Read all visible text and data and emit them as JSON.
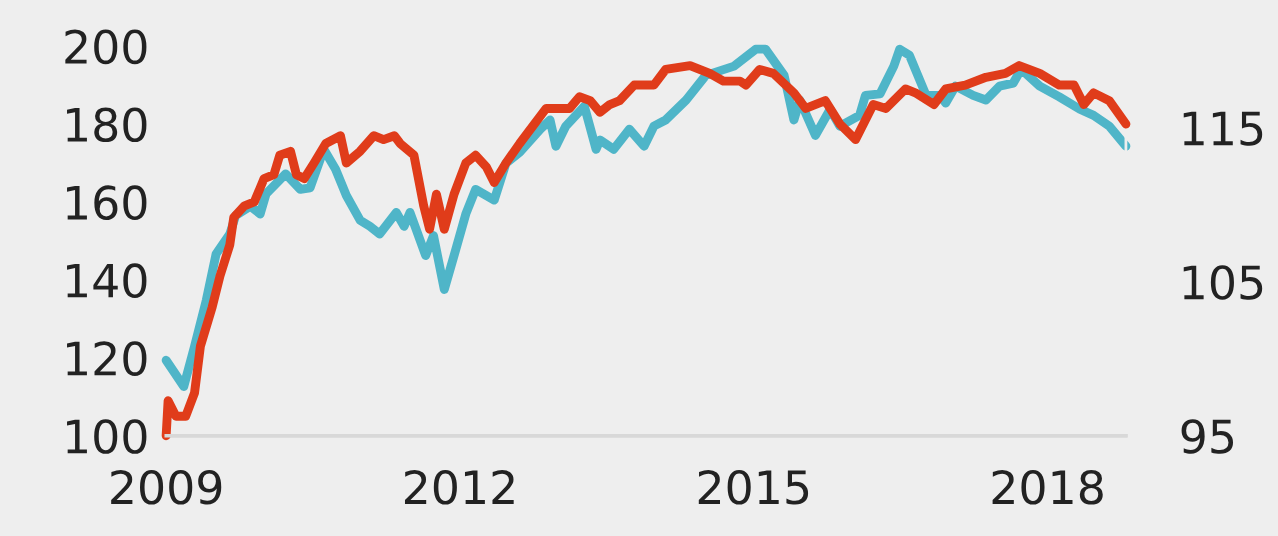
{
  "chart_data": {
    "type": "line",
    "xlim": [
      2009,
      2018.8
    ],
    "xticks": [
      2009,
      2012,
      2015,
      2018
    ],
    "ylim": [
      100,
      200
    ],
    "yticks": [
      100,
      120,
      140,
      160,
      180,
      200
    ],
    "y2lim": [
      95,
      120.3
    ],
    "y2ticks": [
      95,
      105,
      115
    ],
    "grid": false,
    "series": [
      {
        "color": "#e03c1a",
        "axis": "y",
        "x": [
          2009.0,
          2009.02,
          2009.1,
          2009.2,
          2009.29,
          2009.35,
          2009.47,
          2009.55,
          2009.65,
          2009.69,
          2009.8,
          2009.9,
          2010.0,
          2010.1,
          2010.16,
          2010.27,
          2010.33,
          2010.41,
          2010.51,
          2010.63,
          2010.78,
          2010.84,
          2010.98,
          2011.12,
          2011.22,
          2011.33,
          2011.39,
          2011.53,
          2011.63,
          2011.69,
          2011.76,
          2011.84,
          2011.94,
          2012.06,
          2012.16,
          2012.27,
          2012.35,
          2012.47,
          2012.61,
          2012.76,
          2012.88,
          2012.98,
          2013.12,
          2013.22,
          2013.33,
          2013.43,
          2013.53,
          2013.63,
          2013.78,
          2013.98,
          2014.1,
          2014.35,
          2014.55,
          2014.69,
          2014.86,
          2014.92,
          2015.06,
          2015.2,
          2015.41,
          2015.53,
          2015.73,
          2015.88,
          2016.04,
          2016.22,
          2016.35,
          2016.55,
          2016.65,
          2016.84,
          2016.96,
          2017.16,
          2017.37,
          2017.57,
          2017.71,
          2017.92,
          2018.12,
          2018.27,
          2018.37,
          2018.47,
          2018.63,
          2018.8
        ],
        "values": [
          100,
          109,
          105,
          105,
          111,
          123,
          133,
          141,
          149,
          156,
          159,
          160,
          166,
          167,
          172,
          173,
          167,
          166,
          170,
          175,
          177,
          170,
          173,
          177,
          176,
          177,
          175,
          172,
          159,
          153,
          162,
          153,
          162,
          170,
          172,
          169,
          165,
          170,
          175,
          180,
          184,
          184,
          184,
          187,
          186,
          183,
          185,
          186,
          190,
          190,
          194,
          195,
          193,
          191,
          191,
          190,
          194,
          193,
          188,
          184,
          186,
          180,
          176,
          185,
          184,
          189,
          188,
          185,
          189,
          190,
          192,
          193,
          195,
          193,
          190,
          190,
          185,
          188,
          186,
          180
        ]
      },
      {
        "color": "#4fb5c8",
        "axis": "y2",
        "x": [
          2009.0,
          2009.18,
          2009.29,
          2009.41,
          2009.51,
          2009.65,
          2009.71,
          2009.86,
          2009.96,
          2010.02,
          2010.22,
          2010.37,
          2010.47,
          2010.61,
          2010.73,
          2010.84,
          2010.98,
          2011.08,
          2011.18,
          2011.35,
          2011.43,
          2011.49,
          2011.65,
          2011.73,
          2011.84,
          2011.94,
          2012.06,
          2012.16,
          2012.35,
          2012.47,
          2012.61,
          2012.82,
          2012.92,
          2012.98,
          2013.08,
          2013.27,
          2013.39,
          2013.43,
          2013.57,
          2013.73,
          2013.88,
          2013.98,
          2014.1,
          2014.31,
          2014.51,
          2014.8,
          2015.02,
          2015.12,
          2015.31,
          2015.41,
          2015.47,
          2015.63,
          2015.78,
          2015.88,
          2016.08,
          2016.14,
          2016.29,
          2016.43,
          2016.49,
          2016.59,
          2016.76,
          2016.9,
          2016.96,
          2017.06,
          2017.24,
          2017.37,
          2017.51,
          2017.65,
          2017.73,
          2017.92,
          2018.12,
          2018.33,
          2018.47,
          2018.63,
          2018.8
        ],
        "values": [
          99.9,
          98.2,
          100.8,
          103.8,
          106.8,
          108.1,
          109.3,
          109.9,
          109.4,
          110.7,
          112.0,
          111.0,
          111.1,
          113.6,
          112.3,
          110.6,
          109.0,
          108.6,
          108.1,
          109.5,
          108.6,
          109.5,
          106.7,
          108.0,
          104.5,
          106.7,
          109.4,
          111.0,
          110.3,
          112.7,
          113.4,
          114.9,
          115.5,
          113.8,
          115.1,
          116.4,
          113.6,
          114.2,
          113.6,
          114.9,
          113.8,
          115.1,
          115.5,
          116.8,
          118.4,
          119.0,
          120.1,
          120.1,
          118.4,
          115.5,
          116.8,
          114.5,
          116.2,
          115.1,
          115.8,
          117.1,
          117.2,
          119.0,
          120.1,
          119.7,
          117.1,
          117.1,
          116.6,
          117.7,
          117.1,
          116.8,
          117.7,
          117.9,
          118.8,
          117.7,
          117.0,
          116.2,
          115.8,
          115.1,
          113.8
        ]
      }
    ]
  }
}
